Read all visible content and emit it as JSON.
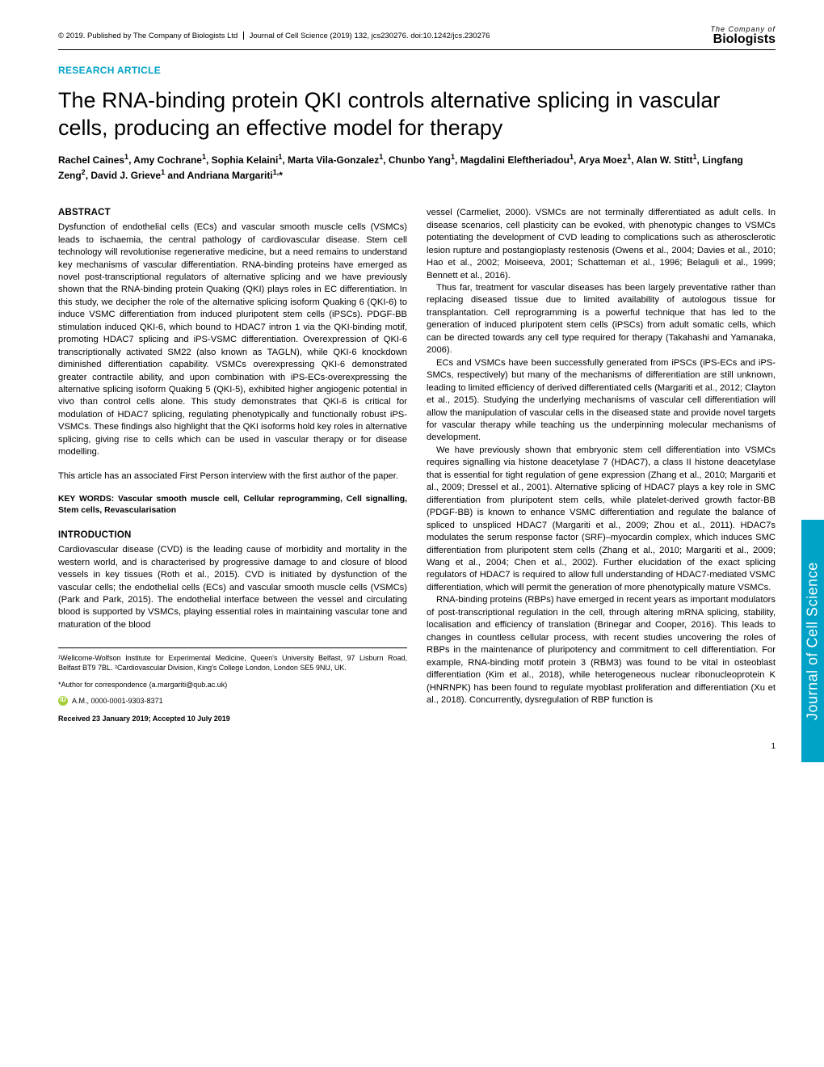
{
  "header": {
    "copyright": "© 2019. Published by The Company of Biologists Ltd",
    "journal_ref": "Journal of Cell Science (2019) 132, jcs230276. doi:10.1242/jcs.230276",
    "logo_line1": "The Company of",
    "logo_line2": "Biologists"
  },
  "article_type": "RESEARCH ARTICLE",
  "title": "The RNA-binding protein QKI controls alternative splicing in vascular cells, producing an effective model for therapy",
  "authors_html": "Rachel Caines<sup>1</sup>, Amy Cochrane<sup>1</sup>, Sophia Kelaini<sup>1</sup>, Marta Vila-Gonzalez<sup>1</sup>, Chunbo Yang<sup>1</sup>, Magdalini Eleftheriadou<sup>1</sup>, Arya Moez<sup>1</sup>, Alan W. Stitt<sup>1</sup>, Lingfang Zeng<sup>2</sup>, David J. Grieve<sup>1</sup> and Andriana Margariti<sup>1,</sup>*",
  "abstract_head": "ABSTRACT",
  "abstract": "Dysfunction of endothelial cells (ECs) and vascular smooth muscle cells (VSMCs) leads to ischaemia, the central pathology of cardiovascular disease. Stem cell technology will revolutionise regenerative medicine, but a need remains to understand key mechanisms of vascular differentiation. RNA-binding proteins have emerged as novel post-transcriptional regulators of alternative splicing and we have previously shown that the RNA-binding protein Quaking (QKI) plays roles in EC differentiation. In this study, we decipher the role of the alternative splicing isoform Quaking 6 (QKI-6) to induce VSMC differentiation from induced pluripotent stem cells (iPSCs). PDGF-BB stimulation induced QKI-6, which bound to HDAC7 intron 1 via the QKI-binding motif, promoting HDAC7 splicing and iPS-VSMC differentiation. Overexpression of QKI-6 transcriptionally activated SM22 (also known as TAGLN), while QKI-6 knockdown diminished differentiation capability. VSMCs overexpressing QKI-6 demonstrated greater contractile ability, and upon combination with iPS-ECs-overexpressing the alternative splicing isoform Quaking 5 (QKI-5), exhibited higher angiogenic potential in vivo than control cells alone. This study demonstrates that QKI-6 is critical for modulation of HDAC7 splicing, regulating phenotypically and functionally robust iPS-VSMCs. These findings also highlight that the QKI isoforms hold key roles in alternative splicing, giving rise to cells which can be used in vascular therapy or for disease modelling.",
  "fp_note": "This article has an associated First Person interview with the first author of the paper.",
  "keywords_label": "KEY WORDS: Vascular smooth muscle cell, Cellular reprogramming, Cell signalling, Stem cells, Revascularisation",
  "intro_head": "INTRODUCTION",
  "intro_p1": "Cardiovascular disease (CVD) is the leading cause of morbidity and mortality in the western world, and is characterised by progressive damage to and closure of blood vessels in key tissues (Roth et al., 2015). CVD is initiated by dysfunction of the vascular cells; the endothelial cells (ECs) and vascular smooth muscle cells (VSMCs) (Park and Park, 2015). The endothelial interface between the vessel and circulating blood is supported by VSMCs, playing essential roles in maintaining vascular tone and maturation of the blood",
  "col2_p1": "vessel (Carmeliet, 2000). VSMCs are not terminally differentiated as adult cells. In disease scenarios, cell plasticity can be evoked, with phenotypic changes to VSMCs potentiating the development of CVD leading to complications such as atherosclerotic lesion rupture and postangioplasty restenosis (Owens et al., 2004; Davies et al., 2010; Hao et al., 2002; Moiseeva, 2001; Schatteman et al., 1996; Belaguli et al., 1999; Bennett et al., 2016).",
  "col2_p2": "Thus far, treatment for vascular diseases has been largely preventative rather than replacing diseased tissue due to limited availability of autologous tissue for transplantation. Cell reprogramming is a powerful technique that has led to the generation of induced pluripotent stem cells (iPSCs) from adult somatic cells, which can be directed towards any cell type required for therapy (Takahashi and Yamanaka, 2006).",
  "col2_p3": "ECs and VSMCs have been successfully generated from iPSCs (iPS-ECs and iPS-SMCs, respectively) but many of the mechanisms of differentiation are still unknown, leading to limited efficiency of derived differentiated cells (Margariti et al., 2012; Clayton et al., 2015). Studying the underlying mechanisms of vascular cell differentiation will allow the manipulation of vascular cells in the diseased state and provide novel targets for vascular therapy while teaching us the underpinning molecular mechanisms of development.",
  "col2_p4": "We have previously shown that embryonic stem cell differentiation into VSMCs requires signalling via histone deacetylase 7 (HDAC7), a class II histone deacetylase that is essential for tight regulation of gene expression (Zhang et al., 2010; Margariti et al., 2009; Dressel et al., 2001). Alternative splicing of HDAC7 plays a key role in SMC differentiation from pluripotent stem cells, while platelet-derived growth factor-BB (PDGF-BB) is known to enhance VSMC differentiation and regulate the balance of spliced to unspliced HDAC7 (Margariti et al., 2009; Zhou et al., 2011). HDAC7s modulates the serum response factor (SRF)–myocardin complex, which induces SMC differentiation from pluripotent stem cells (Zhang et al., 2010; Margariti et al., 2009; Wang et al., 2004; Chen et al., 2002). Further elucidation of the exact splicing regulators of HDAC7 is required to allow full understanding of HDAC7-mediated VSMC differentiation, which will permit the generation of more phenotypically mature VSMCs.",
  "col2_p5": "RNA-binding proteins (RBPs) have emerged in recent years as important modulators of post-transcriptional regulation in the cell, through altering mRNA splicing, stability, localisation and efficiency of translation (Brinegar and Cooper, 2016). This leads to changes in countless cellular process, with recent studies uncovering the roles of RBPs in the maintenance of pluripotency and commitment to cell differentiation. For example, RNA-binding motif protein 3 (RBM3) was found to be vital in osteoblast differentiation (Kim et al., 2018), while heterogeneous nuclear ribonucleoprotein K (HNRNPK) has been found to regulate myoblast proliferation and differentiation (Xu et al., 2018). Concurrently, dysregulation of RBP function is",
  "affiliations": "¹Wellcome-Wolfson Institute for Experimental Medicine, Queen's University Belfast, 97 Lisburn Road, Belfast BT9 7BL. ²Cardiovascular Division, King's College London, London SE5 9NU, UK.",
  "correspondence": "*Author for correspondence (a.margariti@qub.ac.uk)",
  "orcid": "A.M., 0000-0001-9303-8371",
  "dates": "Received 23 January 2019; Accepted 10 July 2019",
  "side_tab": "Journal of Cell Science",
  "page_num": "1"
}
